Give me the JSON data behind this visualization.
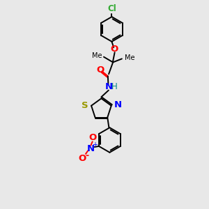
{
  "background_color": "#e8e8e8",
  "bond_color": "#000000",
  "cl_color": "#33aa33",
  "o_color": "#ff0000",
  "n_color": "#0000ff",
  "s_color": "#999900",
  "h_color": "#008888",
  "figsize": [
    3.0,
    3.0
  ],
  "dpi": 100,
  "xlim": [
    0,
    10
  ],
  "ylim": [
    0,
    14
  ]
}
